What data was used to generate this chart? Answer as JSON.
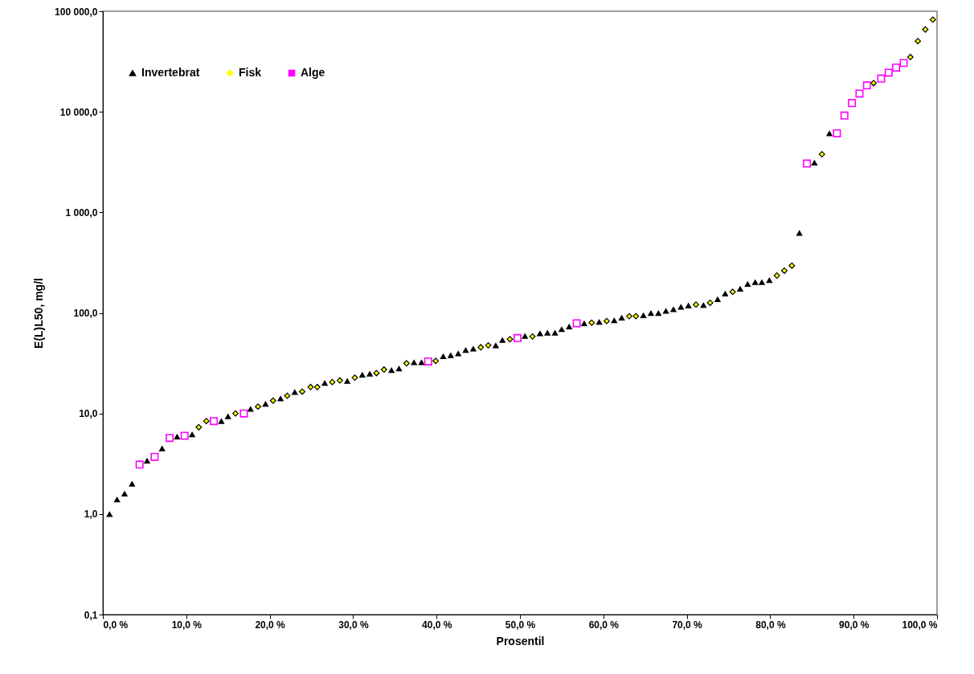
{
  "chart_data": {
    "type": "scatter",
    "xlabel": "Prosentil",
    "ylabel": "E(L)L50, mg/l",
    "log": "y",
    "xlim": [
      0,
      100
    ],
    "ylim": [
      0.1,
      100000
    ],
    "xticks": [
      {
        "value": 0,
        "label": "0,0 %"
      },
      {
        "value": 10,
        "label": "10,0 %"
      },
      {
        "value": 20,
        "label": "20,0 %"
      },
      {
        "value": 30,
        "label": "30,0 %"
      },
      {
        "value": 40,
        "label": "40,0 %"
      },
      {
        "value": 50,
        "label": "50,0 %"
      },
      {
        "value": 60,
        "label": "60,0 %"
      },
      {
        "value": 70,
        "label": "70,0 %"
      },
      {
        "value": 80,
        "label": "80,0 %"
      },
      {
        "value": 90,
        "label": "90,0 %"
      },
      {
        "value": 100,
        "label": "100,0 %"
      }
    ],
    "yticks": [
      {
        "value": 0.1,
        "label": "0,1"
      },
      {
        "value": 1,
        "label": "1,0"
      },
      {
        "value": 10,
        "label": "10,0"
      },
      {
        "value": 100,
        "label": "100,0"
      },
      {
        "value": 1000,
        "label": "1 000,0"
      },
      {
        "value": 10000,
        "label": "10 000,0"
      },
      {
        "value": 100000,
        "label": "100 000,0"
      }
    ],
    "grid": false,
    "legend": "top left",
    "series": [
      {
        "name": "Invertebrat",
        "color": "#000000",
        "marker": "triangle",
        "x": [
          0.8,
          1.7,
          2.6,
          3.5,
          5.3,
          7.1,
          8.9,
          10.7,
          14.2,
          15.0,
          17.7,
          19.5,
          21.3,
          23.0,
          26.6,
          29.3,
          31.1,
          32.0,
          34.6,
          35.5,
          37.3,
          38.2,
          40.8,
          41.7,
          42.6,
          43.5,
          44.4,
          47.1,
          47.9,
          50.6,
          52.4,
          53.3,
          54.2,
          55.0,
          55.9,
          57.7,
          59.5,
          61.3,
          62.2,
          64.8,
          65.7,
          66.6,
          67.5,
          68.4,
          69.3,
          70.2,
          72.0,
          73.7,
          74.6,
          76.4,
          77.3,
          78.2,
          79.0,
          79.9,
          83.5,
          85.3,
          87.1
        ],
        "values": [
          1.0,
          1.4,
          1.6,
          2.0,
          3.4,
          4.5,
          5.9,
          6.2,
          8.4,
          9.4,
          11.1,
          12.5,
          14.1,
          16.4,
          20.1,
          21.1,
          24.3,
          24.9,
          27.0,
          28.1,
          32.3,
          32.3,
          37.2,
          37.9,
          39.6,
          42.8,
          44.2,
          47.6,
          53.8,
          59.0,
          62.8,
          63.5,
          63.5,
          68.9,
          73.2,
          78.8,
          81.5,
          84.5,
          89.8,
          95.0,
          99.8,
          99.8,
          105,
          109,
          115,
          119,
          120,
          137,
          156,
          174,
          194,
          203,
          203,
          212,
          624,
          3120,
          6110
        ]
      },
      {
        "name": "Fisk",
        "color": "#ffff00",
        "marker": "diamond",
        "x": [
          11.5,
          12.4,
          15.9,
          18.6,
          20.4,
          22.1,
          23.9,
          24.9,
          25.7,
          27.5,
          28.4,
          30.2,
          32.8,
          33.7,
          36.4,
          39.9,
          45.3,
          46.2,
          48.8,
          51.5,
          58.6,
          60.4,
          63.1,
          63.9,
          71.1,
          72.8,
          75.5,
          80.8,
          81.7,
          82.6,
          86.2,
          92.4,
          96.8,
          97.7,
          98.6,
          99.5
        ],
        "values": [
          7.3,
          8.4,
          10.0,
          11.7,
          13.4,
          15.0,
          16.5,
          18.3,
          18.3,
          20.5,
          21.3,
          22.7,
          25.2,
          27.3,
          31.5,
          33.3,
          45.5,
          47.6,
          54.8,
          58.3,
          79.9,
          83.0,
          92.7,
          92.7,
          121,
          126,
          162,
          235,
          263,
          295,
          3780,
          19300,
          35000,
          50500,
          65800,
          82600
        ]
      },
      {
        "name": "Alge",
        "color": "#ff00ff",
        "marker": "square",
        "x": [
          4.4,
          6.2,
          8.0,
          9.8,
          13.3,
          16.9,
          39.0,
          49.7,
          56.8,
          84.4,
          88.0,
          88.9,
          89.8,
          90.7,
          91.6,
          93.3,
          94.2,
          95.1,
          96.0
        ],
        "values": [
          3.1,
          3.7,
          5.7,
          6.0,
          8.4,
          10.0,
          32.9,
          56.2,
          78.8,
          3060,
          6110,
          9180,
          12200,
          15200,
          18300,
          21400,
          24500,
          27500,
          30600
        ]
      }
    ]
  }
}
